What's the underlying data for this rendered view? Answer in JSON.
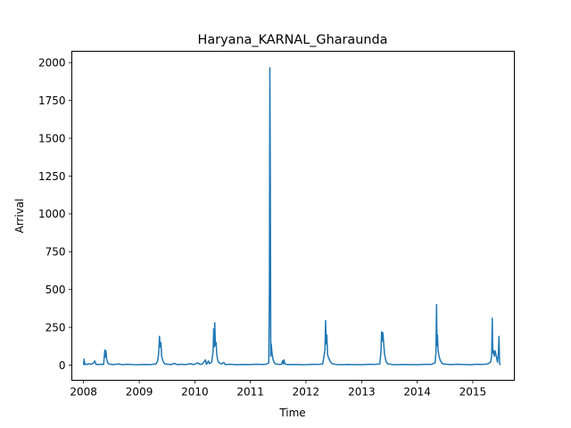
{
  "chart_data": {
    "type": "line",
    "title": "Haryana_KARNAL_Gharaunda",
    "xlabel": "Time",
    "ylabel": "Arrival",
    "x_axis_kind": "date",
    "xlim": [
      "2007-10-16",
      "2015-10-01"
    ],
    "ylim": [
      -100,
      2075
    ],
    "x_ticks": [
      "2008",
      "2009",
      "2010",
      "2011",
      "2012",
      "2013",
      "2014",
      "2015"
    ],
    "y_ticks": [
      0,
      250,
      500,
      750,
      1000,
      1250,
      1500,
      1750,
      2000
    ],
    "grid": false,
    "legend": "none",
    "series": [
      {
        "color": "#1f77b4",
        "points": [
          [
            "2008-01-01",
            2
          ],
          [
            "2008-01-05",
            40
          ],
          [
            "2008-01-09",
            3
          ],
          [
            "2008-01-16",
            8
          ],
          [
            "2008-01-25",
            4
          ],
          [
            "2008-02-08",
            10
          ],
          [
            "2008-02-18",
            5
          ],
          [
            "2008-03-05",
            12
          ],
          [
            "2008-03-15",
            28
          ],
          [
            "2008-03-22",
            6
          ],
          [
            "2008-04-05",
            4
          ],
          [
            "2008-04-22",
            6
          ],
          [
            "2008-05-12",
            5
          ],
          [
            "2008-05-17",
            65
          ],
          [
            "2008-05-20",
            100
          ],
          [
            "2008-05-23",
            55
          ],
          [
            "2008-05-27",
            95
          ],
          [
            "2008-06-01",
            40
          ],
          [
            "2008-06-08",
            15
          ],
          [
            "2008-06-20",
            6
          ],
          [
            "2008-07-15",
            4
          ],
          [
            "2008-08-20",
            8
          ],
          [
            "2008-09-10",
            3
          ],
          [
            "2008-10-15",
            6
          ],
          [
            "2008-11-20",
            4
          ],
          [
            "2008-12-25",
            3
          ],
          [
            "2009-02-10",
            5
          ],
          [
            "2009-03-20",
            4
          ],
          [
            "2009-04-20",
            8
          ],
          [
            "2009-05-01",
            25
          ],
          [
            "2009-05-08",
            70
          ],
          [
            "2009-05-14",
            190
          ],
          [
            "2009-05-18",
            120
          ],
          [
            "2009-05-23",
            150
          ],
          [
            "2009-05-28",
            60
          ],
          [
            "2009-06-05",
            30
          ],
          [
            "2009-06-15",
            10
          ],
          [
            "2009-07-05",
            6
          ],
          [
            "2009-08-01",
            4
          ],
          [
            "2009-08-20",
            12
          ],
          [
            "2009-09-10",
            3
          ],
          [
            "2009-10-01",
            6
          ],
          [
            "2009-11-01",
            4
          ],
          [
            "2009-12-01",
            10
          ],
          [
            "2009-12-25",
            4
          ],
          [
            "2010-01-20",
            15
          ],
          [
            "2010-02-05",
            5
          ],
          [
            "2010-02-20",
            8
          ],
          [
            "2010-03-12",
            35
          ],
          [
            "2010-03-18",
            5
          ],
          [
            "2010-04-01",
            28
          ],
          [
            "2010-04-06",
            10
          ],
          [
            "2010-04-22",
            20
          ],
          [
            "2010-05-01",
            90
          ],
          [
            "2010-05-05",
            240
          ],
          [
            "2010-05-08",
            120
          ],
          [
            "2010-05-12",
            280
          ],
          [
            "2010-05-16",
            130
          ],
          [
            "2010-05-21",
            150
          ],
          [
            "2010-05-25",
            70
          ],
          [
            "2010-06-01",
            30
          ],
          [
            "2010-06-10",
            15
          ],
          [
            "2010-06-25",
            8
          ],
          [
            "2010-07-10",
            18
          ],
          [
            "2010-07-20",
            4
          ],
          [
            "2010-08-20",
            6
          ],
          [
            "2010-10-01",
            3
          ],
          [
            "2010-11-15",
            5
          ],
          [
            "2011-01-01",
            4
          ],
          [
            "2011-02-10",
            6
          ],
          [
            "2011-03-20",
            5
          ],
          [
            "2011-04-15",
            6
          ],
          [
            "2011-05-02",
            15
          ],
          [
            "2011-05-06",
            500
          ],
          [
            "2011-05-09",
            1965
          ],
          [
            "2011-05-12",
            1200
          ],
          [
            "2011-05-15",
            60
          ],
          [
            "2011-05-18",
            140
          ],
          [
            "2011-05-22",
            90
          ],
          [
            "2011-05-28",
            45
          ],
          [
            "2011-06-05",
            20
          ],
          [
            "2011-06-15",
            8
          ],
          [
            "2011-07-10",
            5
          ],
          [
            "2011-07-25",
            6
          ],
          [
            "2011-08-01",
            30
          ],
          [
            "2011-08-05",
            10
          ],
          [
            "2011-08-10",
            35
          ],
          [
            "2011-08-15",
            8
          ],
          [
            "2011-09-01",
            4
          ],
          [
            "2011-10-15",
            5
          ],
          [
            "2011-12-01",
            3
          ],
          [
            "2012-01-15",
            4
          ],
          [
            "2012-02-20",
            6
          ],
          [
            "2012-03-25",
            5
          ],
          [
            "2012-04-20",
            8
          ],
          [
            "2012-05-05",
            100
          ],
          [
            "2012-05-09",
            295
          ],
          [
            "2012-05-13",
            140
          ],
          [
            "2012-05-17",
            200
          ],
          [
            "2012-05-22",
            70
          ],
          [
            "2012-05-28",
            50
          ],
          [
            "2012-06-08",
            25
          ],
          [
            "2012-06-20",
            10
          ],
          [
            "2012-07-15",
            5
          ],
          [
            "2012-08-20",
            3
          ],
          [
            "2012-10-01",
            5
          ],
          [
            "2012-11-15",
            4
          ],
          [
            "2013-01-05",
            3
          ],
          [
            "2013-02-20",
            6
          ],
          [
            "2013-03-30",
            5
          ],
          [
            "2013-04-30",
            8
          ],
          [
            "2013-05-08",
            90
          ],
          [
            "2013-05-12",
            220
          ],
          [
            "2013-05-16",
            160
          ],
          [
            "2013-05-20",
            215
          ],
          [
            "2013-05-25",
            150
          ],
          [
            "2013-06-01",
            70
          ],
          [
            "2013-06-10",
            25
          ],
          [
            "2013-06-20",
            10
          ],
          [
            "2013-07-15",
            5
          ],
          [
            "2013-08-20",
            3
          ],
          [
            "2013-10-01",
            5
          ],
          [
            "2013-11-15",
            4
          ],
          [
            "2014-01-10",
            3
          ],
          [
            "2014-02-25",
            6
          ],
          [
            "2014-04-01",
            5
          ],
          [
            "2014-04-28",
            15
          ],
          [
            "2014-05-04",
            80
          ],
          [
            "2014-05-08",
            400
          ],
          [
            "2014-05-11",
            130
          ],
          [
            "2014-05-14",
            200
          ],
          [
            "2014-05-18",
            100
          ],
          [
            "2014-05-24",
            60
          ],
          [
            "2014-06-02",
            30
          ],
          [
            "2014-06-15",
            10
          ],
          [
            "2014-07-10",
            6
          ],
          [
            "2014-08-10",
            4
          ],
          [
            "2014-09-20",
            6
          ],
          [
            "2014-11-01",
            5
          ],
          [
            "2014-12-15",
            3
          ],
          [
            "2015-01-25",
            6
          ],
          [
            "2015-03-05",
            5
          ],
          [
            "2015-04-10",
            8
          ],
          [
            "2015-04-28",
            20
          ],
          [
            "2015-05-05",
            60
          ],
          [
            "2015-05-09",
            310
          ],
          [
            "2015-05-12",
            80
          ],
          [
            "2015-05-16",
            100
          ],
          [
            "2015-05-22",
            60
          ],
          [
            "2015-05-28",
            95
          ],
          [
            "2015-06-05",
            55
          ],
          [
            "2015-06-12",
            20
          ],
          [
            "2015-06-18",
            70
          ],
          [
            "2015-06-22",
            190
          ],
          [
            "2015-06-26",
            10
          ],
          [
            "2015-06-30",
            0
          ]
        ]
      }
    ]
  }
}
